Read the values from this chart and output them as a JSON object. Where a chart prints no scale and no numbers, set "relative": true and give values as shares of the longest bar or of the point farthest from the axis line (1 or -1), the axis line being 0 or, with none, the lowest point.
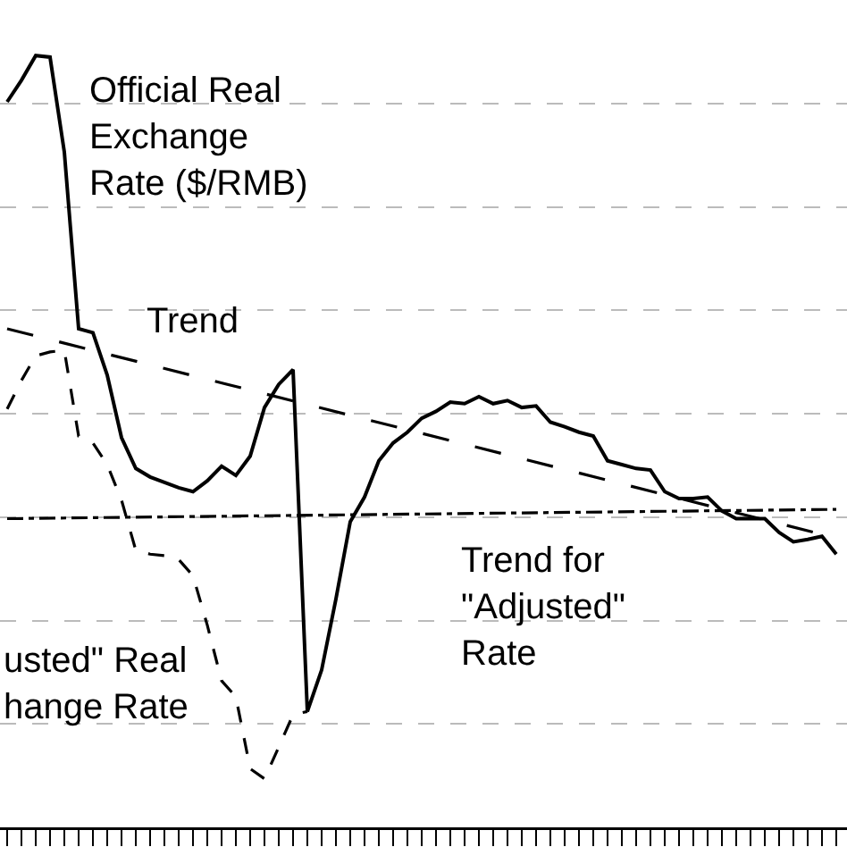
{
  "chart_data": {
    "type": "line",
    "relative": true,
    "grid": "y",
    "categories": [
      null,
      null,
      null,
      null,
      null,
      null,
      null,
      null,
      null,
      null,
      null,
      null,
      null,
      null,
      null,
      null,
      null,
      null,
      null,
      null,
      null,
      null,
      null,
      null,
      null,
      null,
      null,
      null,
      null,
      null,
      null,
      null,
      null,
      null,
      null,
      null,
      null,
      null,
      null,
      null,
      null,
      null,
      null,
      null,
      null,
      null,
      null,
      null,
      null,
      null,
      null,
      null,
      null,
      null,
      null,
      null,
      null,
      null,
      null
    ],
    "series": [
      {
        "color": "#000000",
        "line_style": "solid",
        "values": [
          0.94,
          0.968,
          1.0,
          0.998,
          0.875,
          0.646,
          0.641,
          0.586,
          0.505,
          0.465,
          0.454,
          0.447,
          0.44,
          0.435,
          0.449,
          0.468,
          0.456,
          0.481,
          0.544,
          0.574,
          0.593,
          0.15,
          0.204,
          0.296,
          0.396,
          0.428,
          0.475,
          0.498,
          0.512,
          0.53,
          0.539,
          0.551,
          0.549,
          0.558,
          0.549,
          0.553,
          0.544,
          0.546,
          0.525,
          0.519,
          0.512,
          0.507,
          0.475,
          0.47,
          0.465,
          0.463,
          0.435,
          0.426,
          0.426,
          0.428,
          0.41,
          0.4,
          0.4,
          0.4,
          0.382,
          0.37,
          0.373,
          0.377,
          0.354
        ]
      },
      {
        "color": "#000000",
        "line_style": "dashed",
        "values": [
          0.542,
          0.579,
          0.611,
          0.616,
          0.618,
          0.507,
          0.498,
          0.47,
          0.424,
          0.359,
          0.354,
          0.352,
          0.347,
          0.326,
          0.262,
          0.19,
          0.169,
          0.076,
          0.063,
          0.104,
          0.146,
          0.15,
          null,
          null,
          null,
          null,
          null,
          null,
          null,
          null,
          null,
          null,
          null,
          null,
          null,
          null,
          null,
          null,
          null,
          null,
          null,
          null,
          null,
          null,
          null,
          null,
          null,
          null,
          null,
          null,
          null,
          null,
          null,
          null,
          null,
          null,
          null,
          null,
          null
        ]
      },
      {
        "type": "line",
        "color": "#000000",
        "line_style": "dashed",
        "values": [
          0.646,
          null,
          null,
          null,
          null,
          null,
          null,
          null,
          null,
          null,
          null,
          null,
          null,
          null,
          null,
          null,
          null,
          null,
          null,
          null,
          null,
          null,
          null,
          null,
          null,
          null,
          null,
          null,
          null,
          null,
          null,
          null,
          null,
          null,
          null,
          null,
          null,
          null,
          null,
          null,
          null,
          null,
          null,
          null,
          null,
          null,
          null,
          null,
          null,
          null,
          null,
          null,
          null,
          null,
          null,
          null,
          null,
          null,
          0.375
        ]
      },
      {
        "type": "line",
        "color": "#000000",
        "line_style": "dashed",
        "values": [
          0.4,
          null,
          null,
          null,
          null,
          null,
          null,
          null,
          null,
          null,
          null,
          null,
          null,
          null,
          null,
          null,
          null,
          null,
          null,
          null,
          null,
          null,
          null,
          null,
          null,
          null,
          null,
          null,
          null,
          null,
          null,
          null,
          null,
          null,
          null,
          null,
          null,
          null,
          null,
          null,
          null,
          null,
          null,
          null,
          null,
          null,
          null,
          null,
          null,
          null,
          null,
          null,
          null,
          null,
          null,
          null,
          null,
          null,
          0.412
        ]
      }
    ],
    "annotations": [
      "Official Real\nExchange\nRate ($/RMB)",
      "Trend",
      "Trend for\n\"Adjusted\"\nRate",
      "usted\" Real\nhange Rate"
    ]
  }
}
